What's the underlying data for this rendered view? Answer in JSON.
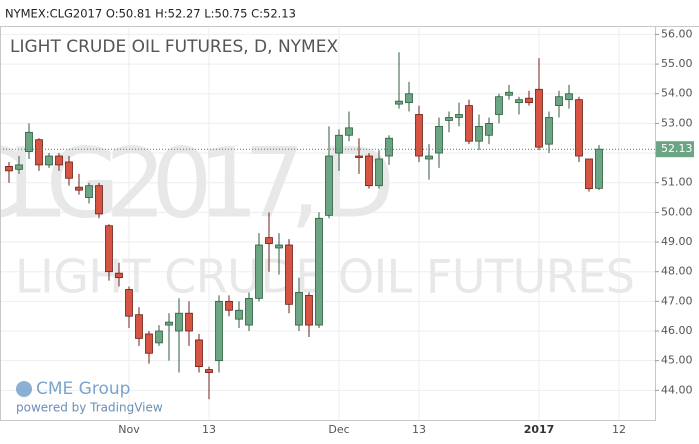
{
  "chart_data": {
    "type": "candlestick",
    "header": "NYMEX:CLG2017 O:50.81 H:52.27 L:50.75 C:52.13",
    "title": "LIGHT CRUDE OIL FUTURES, D, NYMEX",
    "watermark": [
      "CLG2017, D",
      "LIGHT CRUDE OIL FUTURES"
    ],
    "logo": "CME Group",
    "credit": "powered by TradingView",
    "categories": [
      null,
      null,
      null,
      null,
      null,
      null,
      null,
      null,
      null,
      null,
      null,
      null,
      "Nov",
      null,
      null,
      null,
      null,
      null,
      null,
      null,
      "13",
      null,
      null,
      null,
      null,
      null,
      null,
      null,
      null,
      null,
      null,
      null,
      null,
      "Dec",
      null,
      null,
      null,
      null,
      null,
      null,
      null,
      "13",
      null,
      null,
      null,
      null,
      null,
      null,
      null,
      null,
      null,
      null,
      null,
      "2017",
      null,
      null,
      null,
      null,
      null,
      null,
      null,
      "12"
    ],
    "open": [
      51.55,
      51.45,
      52.05,
      52.45,
      51.6,
      51.9,
      51.7,
      50.85,
      50.5,
      50.9,
      49.55,
      47.95,
      47.4,
      46.55,
      45.9,
      45.6,
      46.2,
      46.0,
      46.6,
      45.7,
      44.7,
      45.0,
      47.0,
      46.4,
      46.2,
      47.1,
      49.15,
      48.8,
      48.9,
      46.2,
      47.2,
      46.2,
      49.9,
      52.0,
      52.6,
      51.9,
      51.9,
      50.9,
      51.9,
      53.65,
      53.7,
      53.3,
      51.8,
      52.0,
      53.1,
      53.2,
      53.6,
      52.4,
      52.6,
      53.3,
      53.95,
      53.7,
      53.85,
      54.15,
      52.3,
      53.6,
      53.8,
      53.8,
      51.8,
      50.81,
      null,
      null
    ],
    "high": [
      51.7,
      51.9,
      53.0,
      52.5,
      52.0,
      52.0,
      51.9,
      51.3,
      51.0,
      51.0,
      49.6,
      48.3,
      47.5,
      46.8,
      46.0,
      46.2,
      46.6,
      47.1,
      47.0,
      45.9,
      44.8,
      47.2,
      47.2,
      47.0,
      47.3,
      49.3,
      50.0,
      49.3,
      49.1,
      47.8,
      47.3,
      50.0,
      52.9,
      52.8,
      53.4,
      52.5,
      52.0,
      52.1,
      52.6,
      55.4,
      54.4,
      53.6,
      52.3,
      53.2,
      53.4,
      53.7,
      53.8,
      53.3,
      53.2,
      54.0,
      54.3,
      53.9,
      54.1,
      55.2,
      53.4,
      54.1,
      54.3,
      53.9,
      51.8,
      52.27,
      null,
      null
    ],
    "low": [
      51.0,
      51.3,
      51.8,
      51.4,
      51.5,
      51.4,
      50.9,
      50.6,
      50.3,
      49.8,
      47.7,
      47.5,
      46.1,
      45.5,
      44.9,
      45.5,
      45.0,
      44.6,
      45.5,
      44.6,
      43.7,
      44.6,
      46.5,
      46.1,
      46.0,
      47.0,
      48.0,
      47.9,
      46.6,
      46.0,
      45.8,
      46.1,
      49.8,
      51.4,
      52.4,
      51.3,
      50.8,
      50.8,
      51.6,
      53.5,
      53.4,
      51.7,
      51.1,
      51.5,
      52.7,
      52.9,
      52.3,
      52.1,
      52.3,
      53.0,
      53.8,
      53.3,
      53.6,
      52.1,
      52.0,
      53.2,
      53.5,
      51.7,
      50.7,
      50.75,
      null,
      null
    ],
    "close": [
      51.4,
      51.6,
      52.7,
      51.6,
      51.9,
      51.6,
      51.15,
      50.75,
      50.9,
      49.95,
      48.0,
      47.8,
      46.5,
      45.75,
      45.25,
      46.0,
      46.3,
      46.6,
      46.0,
      44.8,
      44.6,
      47.0,
      46.7,
      46.7,
      47.1,
      48.9,
      48.95,
      48.9,
      46.9,
      47.3,
      46.2,
      49.8,
      51.9,
      52.6,
      52.85,
      51.85,
      50.9,
      51.8,
      52.5,
      53.75,
      54.0,
      51.9,
      51.9,
      52.9,
      53.2,
      53.3,
      52.4,
      52.9,
      53.0,
      53.9,
      54.05,
      53.8,
      53.7,
      52.2,
      53.2,
      53.9,
      54.0,
      51.9,
      50.8,
      52.13,
      null,
      null
    ],
    "up_color": "#6ba583",
    "down_color": "#d75442",
    "last_price": 52.13,
    "ylim": [
      43.0,
      56.25
    ],
    "yticks": [
      {
        "value": 44,
        "label": "44.00"
      },
      {
        "value": 45,
        "label": "45.00"
      },
      {
        "value": 46,
        "label": "46.00"
      },
      {
        "value": 47,
        "label": "47.00"
      },
      {
        "value": 48,
        "label": "48.00"
      },
      {
        "value": 49,
        "label": "49.00"
      },
      {
        "value": 50,
        "label": "50.00"
      },
      {
        "value": 51,
        "label": "51.00"
      },
      {
        "value": 52,
        "label": "52.00"
      },
      {
        "value": 53,
        "label": "53.00"
      },
      {
        "value": 54,
        "label": "54.00"
      },
      {
        "value": 55,
        "label": "55.00"
      },
      {
        "value": 56,
        "label": "56.00"
      }
    ],
    "grid": true
  }
}
